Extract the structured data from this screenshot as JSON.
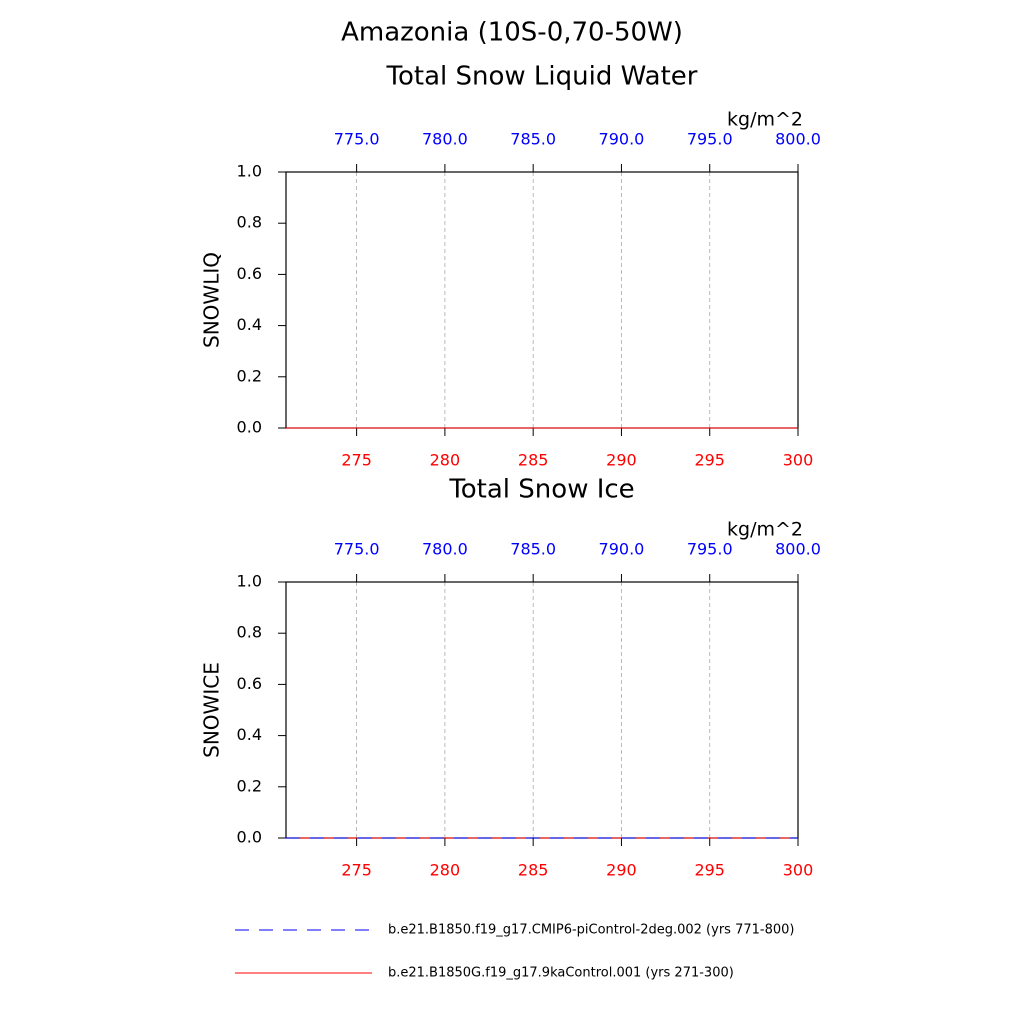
{
  "title": "Amazonia (10S-0,70-50W)",
  "chart_data": [
    {
      "type": "line",
      "title": "Total Snow Liquid Water",
      "ylabel": "SNOWLIQ",
      "units": "kg/m^2",
      "xlim": [
        271,
        300
      ],
      "xticks": [
        275,
        280,
        285,
        290,
        295,
        300
      ],
      "xtick_color": "#ff0000",
      "x2lim": [
        771,
        800
      ],
      "x2ticks": [
        {
          "value": 775,
          "label": "775.0"
        },
        {
          "value": 780,
          "label": "780.0"
        },
        {
          "value": 785,
          "label": "785.0"
        },
        {
          "value": 790,
          "label": "790.0"
        },
        {
          "value": 795,
          "label": "795.0"
        },
        {
          "value": 800,
          "label": "800.0"
        }
      ],
      "x2tick_color": "#0000ff",
      "ylim": [
        0,
        1
      ],
      "yticks": [
        {
          "value": 0,
          "label": "0.0"
        },
        0.2,
        0.4,
        0.6,
        0.8,
        {
          "value": 1,
          "label": "1.0"
        }
      ],
      "grid": true,
      "series": [
        {
          "name": "b.e21.B1850.f19_g17.CMIP6-piControl-2deg.002 (yrs 771-800)",
          "color": "#0000ff",
          "linestyle": "dashed",
          "axis": "x2",
          "x": [
            771,
            772,
            773,
            774,
            775,
            776,
            777,
            778,
            779,
            780,
            781,
            782,
            783,
            784,
            785,
            786,
            787,
            788,
            789,
            790,
            791,
            792,
            793,
            794,
            795,
            796,
            797,
            798,
            799,
            800
          ],
          "values": [
            0,
            0,
            0,
            0,
            0,
            0,
            0,
            0,
            0,
            0,
            0,
            0,
            0,
            0,
            0,
            0,
            0,
            0,
            0,
            0,
            0,
            0,
            0,
            0,
            0,
            0,
            0,
            0,
            0,
            0
          ]
        },
        {
          "name": "b.e21.B1850G.f19_g17.9kaControl.001 (yrs 271-300)",
          "color": "#ff0000",
          "linestyle": "solid",
          "x": [
            271,
            272,
            273,
            274,
            275,
            276,
            277,
            278,
            279,
            280,
            281,
            282,
            283,
            284,
            285,
            286,
            287,
            288,
            289,
            290,
            291,
            292,
            293,
            294,
            295,
            296,
            297,
            298,
            299,
            300
          ],
          "values": [
            0,
            0,
            0,
            0,
            0,
            0,
            0,
            0,
            0,
            0,
            0,
            0,
            0,
            0,
            0,
            0,
            0,
            0,
            0,
            0,
            0,
            0,
            0,
            0,
            0,
            0,
            0,
            0,
            0,
            0
          ]
        }
      ]
    },
    {
      "type": "line",
      "title": "Total Snow Ice",
      "ylabel": "SNOWICE",
      "units": "kg/m^2",
      "xlim": [
        271,
        300
      ],
      "xticks": [
        275,
        280,
        285,
        290,
        295,
        300
      ],
      "xtick_color": "#ff0000",
      "x2lim": [
        771,
        800
      ],
      "x2ticks": [
        {
          "value": 775,
          "label": "775.0"
        },
        {
          "value": 780,
          "label": "780.0"
        },
        {
          "value": 785,
          "label": "785.0"
        },
        {
          "value": 790,
          "label": "790.0"
        },
        {
          "value": 795,
          "label": "795.0"
        },
        {
          "value": 800,
          "label": "800.0"
        }
      ],
      "x2tick_color": "#0000ff",
      "ylim": [
        0,
        1
      ],
      "yticks": [
        {
          "value": 0,
          "label": "0.0"
        },
        0.2,
        0.4,
        0.6,
        0.8,
        {
          "value": 1,
          "label": "1.0"
        }
      ],
      "grid": true,
      "series": [
        {
          "color": "#ff0000",
          "linestyle": "solid",
          "x": [
            271,
            272,
            273,
            274,
            275,
            276,
            277,
            278,
            279,
            280,
            281,
            282,
            283,
            284,
            285,
            286,
            287,
            288,
            289,
            290,
            291,
            292,
            293,
            294,
            295,
            296,
            297,
            298,
            299,
            300
          ],
          "values": [
            0,
            0,
            0,
            0,
            0,
            0,
            0,
            0,
            0,
            0,
            0,
            0,
            0,
            0,
            0,
            0,
            0,
            0,
            0,
            0,
            0,
            0,
            0,
            0,
            0,
            0,
            0,
            0,
            0,
            0
          ]
        },
        {
          "color": "#0000ff",
          "linestyle": "dashed",
          "axis": "x2",
          "x": [
            771,
            772,
            773,
            774,
            775,
            776,
            777,
            778,
            779,
            780,
            781,
            782,
            783,
            784,
            785,
            786,
            787,
            788,
            789,
            790,
            791,
            792,
            793,
            794,
            795,
            796,
            797,
            798,
            799,
            800
          ],
          "values": [
            0,
            0,
            0,
            0,
            0,
            0,
            0,
            0,
            0,
            0,
            0,
            0,
            0,
            0,
            0,
            0,
            0,
            0,
            0,
            0,
            0,
            0,
            0,
            0,
            0,
            0,
            0,
            0,
            0,
            0
          ]
        }
      ]
    }
  ]
}
